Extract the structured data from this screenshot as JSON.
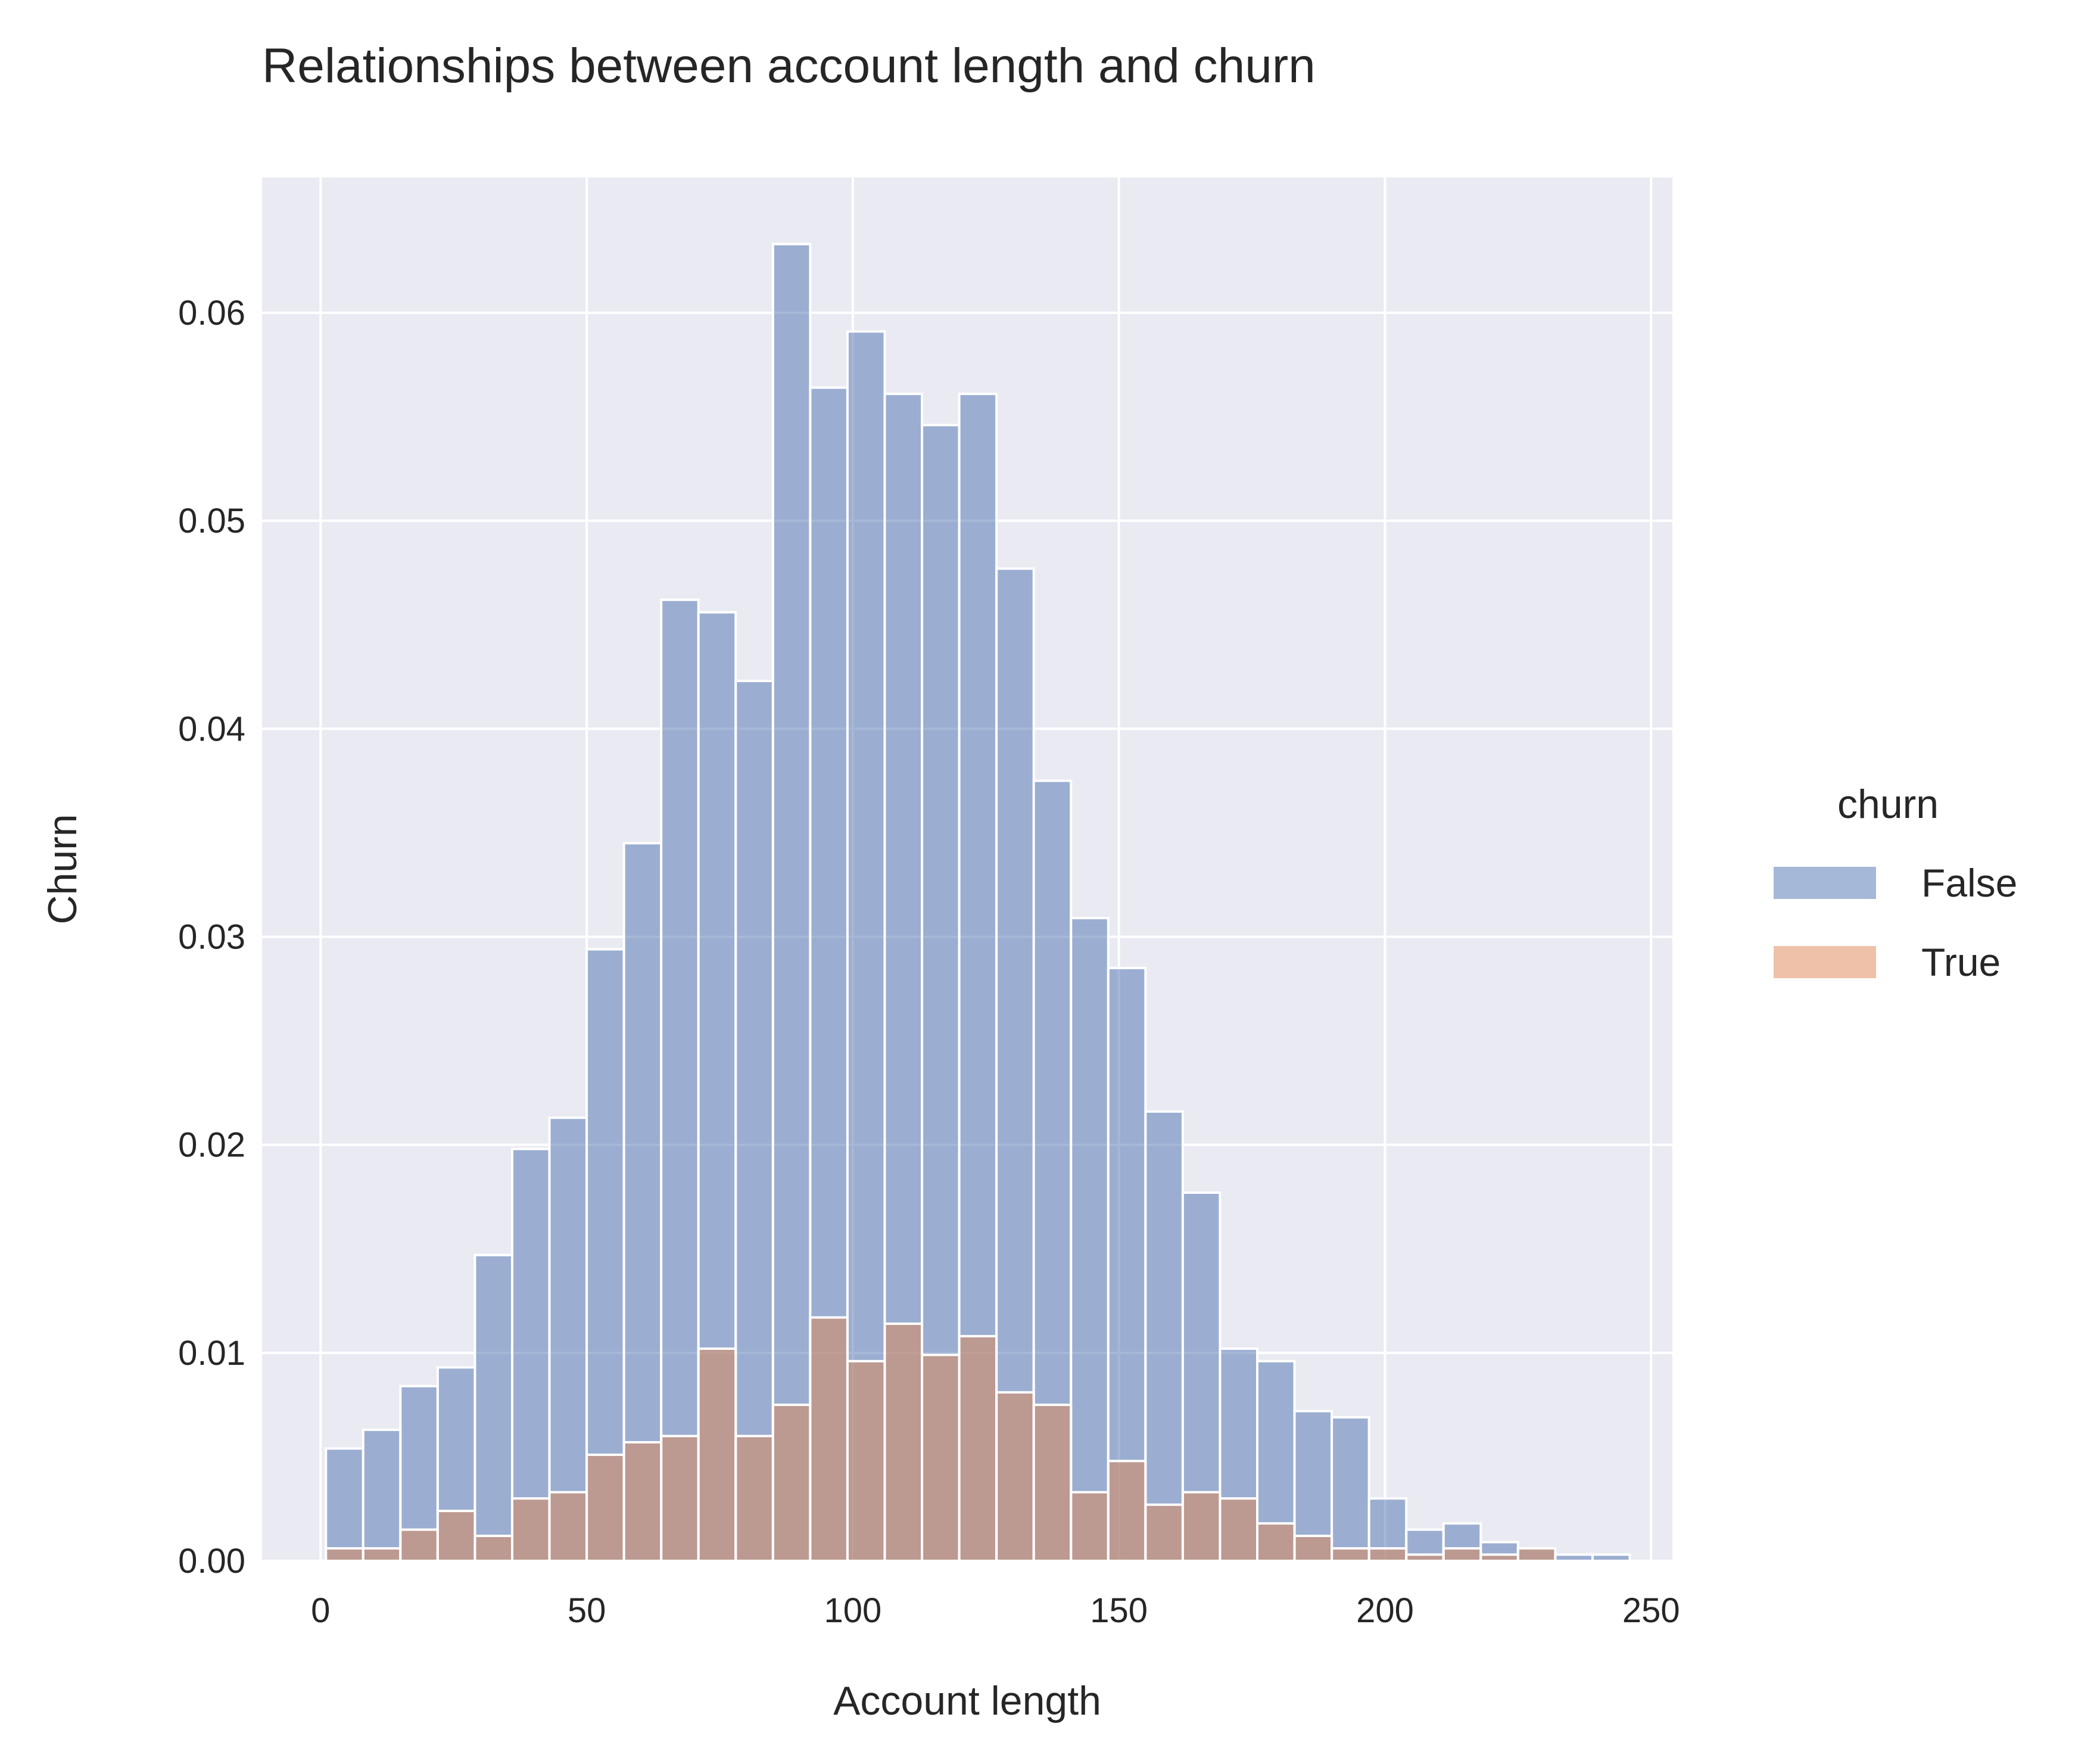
{
  "chart_data": {
    "type": "bar",
    "subtype": "overlaid-histogram",
    "title": "Relationships between account length and churn",
    "xlabel": "Account length",
    "ylabel": "Churn",
    "xlim": [
      -11,
      254
    ],
    "ylim": [
      0,
      0.0665
    ],
    "xticks": [
      0,
      50,
      100,
      150,
      200,
      250
    ],
    "xtick_labels": [
      "0",
      "50",
      "100",
      "150",
      "200",
      "250"
    ],
    "yticks": [
      0,
      0.01,
      0.02,
      0.03,
      0.04,
      0.05,
      0.06
    ],
    "ytick_labels": [
      "0.00",
      "0.01",
      "0.02",
      "0.03",
      "0.04",
      "0.05",
      "0.06"
    ],
    "grid": true,
    "background": "#eaeaf2",
    "grid_color": "#ffffff",
    "bin_start": 1,
    "bin_width": 7,
    "x": [
      4.5,
      11.5,
      18.5,
      25.5,
      32.5,
      39.5,
      46.5,
      53.5,
      60.5,
      67.5,
      74.5,
      81.5,
      88.5,
      95.5,
      102.5,
      109.5,
      116.5,
      123.5,
      130.5,
      137.5,
      144.5,
      151.5,
      158.5,
      165.5,
      172.5,
      179.5,
      186.5,
      193.5,
      200.5,
      207.5,
      214.5,
      221.5,
      228.5,
      235.5,
      242.5
    ],
    "series": [
      {
        "name": "False",
        "color": "#4c72b0",
        "values": [
          0.0054,
          0.0063,
          0.0084,
          0.0093,
          0.0147,
          0.0198,
          0.0213,
          0.0294,
          0.0345,
          0.0462,
          0.0456,
          0.0423,
          0.0633,
          0.0564,
          0.0591,
          0.0561,
          0.0546,
          0.0561,
          0.0477,
          0.0375,
          0.0309,
          0.0285,
          0.0216,
          0.0177,
          0.0102,
          0.0096,
          0.0072,
          0.0069,
          0.003,
          0.0015,
          0.0018,
          0.0009,
          0.0006,
          0.0003,
          0.0003
        ]
      },
      {
        "name": "True",
        "color": "#dd8452",
        "values": [
          0.0006,
          0.0006,
          0.0015,
          0.0024,
          0.0012,
          0.003,
          0.0033,
          0.0051,
          0.0057,
          0.006,
          0.0102,
          0.006,
          0.0075,
          0.0117,
          0.0096,
          0.0114,
          0.0099,
          0.0108,
          0.0081,
          0.0075,
          0.0033,
          0.0048,
          0.0027,
          0.0033,
          0.003,
          0.0018,
          0.0012,
          0.0006,
          0.0006,
          0.0003,
          0.0006,
          0.0003,
          0.0006,
          0.0,
          0.0
        ]
      }
    ],
    "legend": {
      "title": "churn",
      "placement": "right-outside",
      "entries": [
        "False",
        "True"
      ]
    }
  }
}
